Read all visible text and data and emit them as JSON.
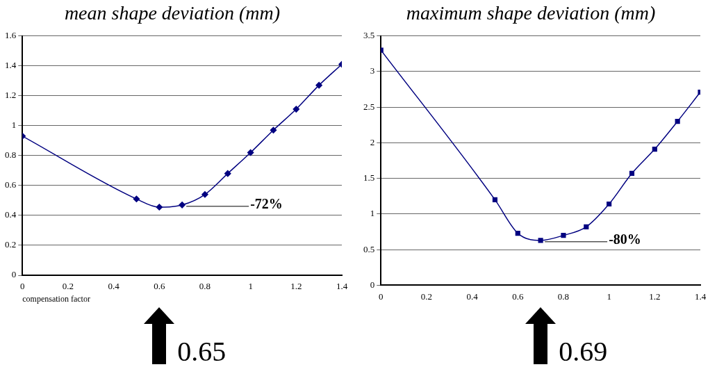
{
  "chart_data": [
    {
      "type": "line",
      "title": "mean shape deviation (mm)",
      "xlabel": "compensation factor",
      "x": [
        0,
        0.5,
        0.6,
        0.7,
        0.8,
        0.9,
        1.0,
        1.1,
        1.2,
        1.3,
        1.4
      ],
      "series": [
        {
          "color": "#000080",
          "values": [
            0.93,
            0.51,
            0.455,
            0.47,
            0.54,
            0.68,
            0.82,
            0.97,
            1.11,
            1.27,
            1.41
          ]
        }
      ],
      "marker": "diamond",
      "grid": "y",
      "xlim": [
        0,
        1.4
      ],
      "xticks": [
        0,
        0.2,
        0.4,
        0.6,
        0.8,
        1,
        1.2,
        1.4
      ],
      "ylim": [
        0,
        1.6
      ],
      "yticks": [
        0,
        0.2,
        0.4,
        0.6,
        0.8,
        1,
        1.2,
        1.4,
        1.6
      ],
      "annotations": [
        {
          "text": "-72%",
          "x": 0.7,
          "y": 0.47
        },
        "0.65"
      ]
    },
    {
      "type": "line",
      "title": "maximum shape deviation (mm)",
      "x": [
        0,
        0.5,
        0.6,
        0.7,
        0.8,
        0.9,
        1.0,
        1.1,
        1.2,
        1.3,
        1.4
      ],
      "series": [
        {
          "color": "#000080",
          "values": [
            3.3,
            1.2,
            0.73,
            0.63,
            0.7,
            0.82,
            1.14,
            1.57,
            1.91,
            2.3,
            2.71
          ]
        }
      ],
      "marker": "square",
      "grid": "y",
      "xlim": [
        0,
        1.4
      ],
      "xticks": [
        0,
        0.2,
        0.4,
        0.6,
        0.8,
        1,
        1.2,
        1.4
      ],
      "ylim": [
        0,
        3.5
      ],
      "yticks": [
        0,
        0.5,
        1,
        1.5,
        2,
        2.5,
        3,
        3.5
      ],
      "annotations": [
        {
          "text": "-80%",
          "x": 0.7,
          "y": 0.63
        },
        "0.69"
      ]
    }
  ]
}
